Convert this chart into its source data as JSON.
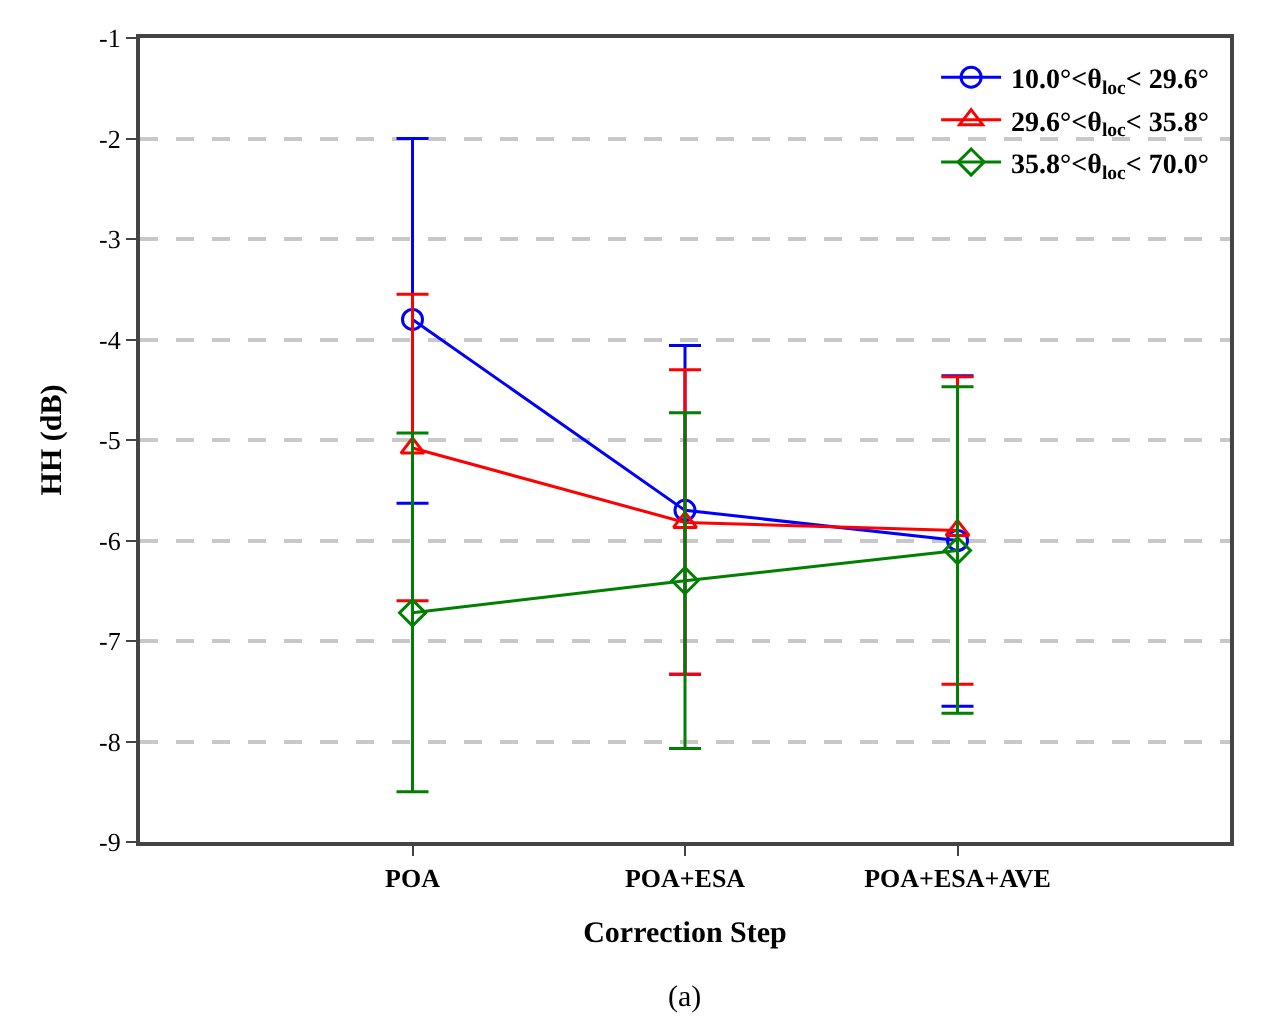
{
  "chart_data": {
    "type": "line",
    "xlabel": "Correction Step",
    "ylabel": "HH (dB)",
    "categories": [
      "POA",
      "POA+ESA",
      "POA+ESA+AVE"
    ],
    "series": [
      {
        "name": "10.0°<θ$_{loc}$< 29.6°",
        "color": "#0000ff",
        "marker": "circle",
        "values": [
          -3.8,
          -5.7,
          -6.0
        ],
        "errors": [
          [
            -5.63,
            -2.0
          ],
          [
            -7.33,
            -4.06
          ],
          [
            -7.65,
            -4.36
          ]
        ]
      },
      {
        "name": "29.6°<θ$_{loc}$< 35.8°",
        "color": "#ff0000",
        "marker": "triangle",
        "values": [
          -5.08,
          -5.82,
          -5.9
        ],
        "errors": [
          [
            -6.6,
            -3.55
          ],
          [
            -7.33,
            -4.3
          ],
          [
            -7.43,
            -4.37
          ]
        ]
      },
      {
        "name": "35.8°<θ$_{loc}$< 70.0°",
        "color": "#008000",
        "marker": "diamond",
        "values": [
          -6.72,
          -6.4,
          -6.1
        ],
        "errors": [
          [
            -8.5,
            -4.93
          ],
          [
            -8.07,
            -4.73
          ],
          [
            -7.72,
            -4.47
          ]
        ]
      }
    ],
    "ylim": [
      -9,
      -1
    ],
    "yticks": [
      -9,
      -8,
      -7,
      -6,
      -5,
      -4,
      -3,
      -2,
      -1
    ],
    "grid": "y",
    "legend": "top right",
    "annotations": [
      "(a)"
    ]
  }
}
